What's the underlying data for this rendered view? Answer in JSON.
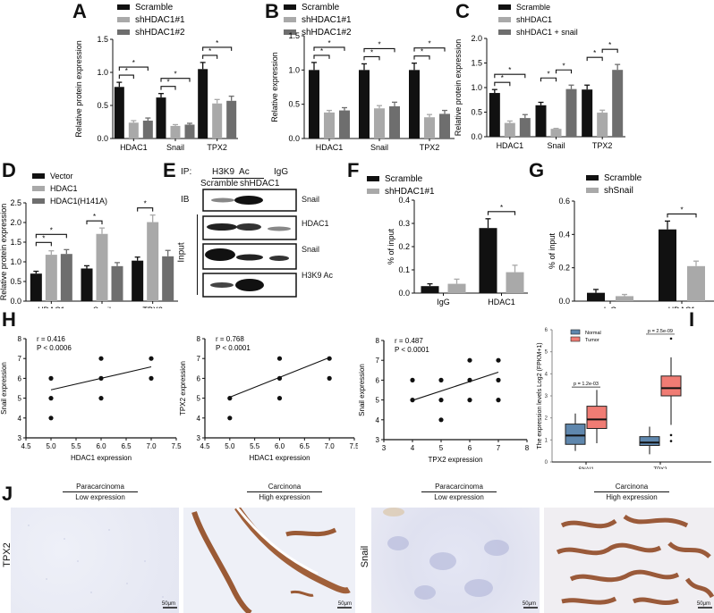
{
  "colors": {
    "black": "#111111",
    "light_gray": "#a9a9a9",
    "dark_gray": "#6e6e6e",
    "normal": "#5f87ad",
    "tumor": "#f07c74"
  },
  "chart_data": [
    {
      "panel": "A",
      "type": "bar",
      "categories": [
        "HDAC1",
        "Snail",
        "TPX2"
      ],
      "series": [
        {
          "name": "Scramble",
          "values": [
            0.78,
            0.62,
            1.05
          ],
          "errors": [
            0.07,
            0.06,
            0.1
          ]
        },
        {
          "name": "shHDAC1#1",
          "values": [
            0.24,
            0.19,
            0.53
          ],
          "errors": [
            0.03,
            0.02,
            0.06
          ]
        },
        {
          "name": "shHDAC1#2",
          "values": [
            0.27,
            0.21,
            0.57
          ],
          "errors": [
            0.04,
            0.02,
            0.07
          ]
        }
      ],
      "ylabel": "Relative protein expression",
      "ylim": [
        0,
        1.5
      ],
      "yticks": [
        "0.0",
        "0.5",
        "1.0",
        "1.5"
      ],
      "annotations": "* significance brackets Scramble vs shHDAC1#1 and vs shHDAC1#2 in each group"
    },
    {
      "panel": "B",
      "type": "bar",
      "categories": [
        "HDAC1",
        "Snail",
        "TPX2"
      ],
      "series": [
        {
          "name": "Scramble",
          "values": [
            1.0,
            1.0,
            1.0
          ],
          "errors": [
            0.11,
            0.09,
            0.1
          ]
        },
        {
          "name": "shHDAC1#1",
          "values": [
            0.38,
            0.44,
            0.31
          ],
          "errors": [
            0.03,
            0.04,
            0.04
          ]
        },
        {
          "name": "shHDAC1#2",
          "values": [
            0.41,
            0.47,
            0.36
          ],
          "errors": [
            0.04,
            0.06,
            0.05
          ]
        }
      ],
      "ylabel": "Relative expression",
      "ylim": [
        0,
        1.5
      ],
      "yticks": [
        "0.0",
        "0.5",
        "1.0",
        "1.5"
      ]
    },
    {
      "panel": "C",
      "type": "bar",
      "categories": [
        "HDAC1",
        "Snail",
        "TPX2"
      ],
      "series": [
        {
          "name": "Scramble",
          "values": [
            0.89,
            0.64,
            0.96
          ],
          "errors": [
            0.07,
            0.06,
            0.09
          ]
        },
        {
          "name": "shHDAC1",
          "values": [
            0.28,
            0.16,
            0.49
          ],
          "errors": [
            0.04,
            0.01,
            0.05
          ]
        },
        {
          "name": "shHDAC1 + snail",
          "values": [
            0.38,
            0.97,
            1.36
          ],
          "errors": [
            0.07,
            0.08,
            0.11
          ]
        }
      ],
      "ylabel": "Relative protein expression",
      "ylim": [
        0,
        2.0
      ],
      "yticks": [
        "0.0",
        "0.5",
        "1.0",
        "1.5",
        "2.0"
      ]
    },
    {
      "panel": "D",
      "type": "bar",
      "categories": [
        "HDAC1",
        "Snail",
        "TPX2"
      ],
      "series": [
        {
          "name": "Vector",
          "values": [
            0.7,
            0.83,
            1.03
          ],
          "errors": [
            0.06,
            0.07,
            0.09
          ]
        },
        {
          "name": "HDAC1",
          "values": [
            1.18,
            1.71,
            2.01
          ],
          "errors": [
            0.1,
            0.15,
            0.18
          ]
        },
        {
          "name": "HDAC1(H141A)",
          "values": [
            1.2,
            0.89,
            1.14
          ],
          "errors": [
            0.11,
            0.09,
            0.15
          ]
        }
      ],
      "ylabel": "Relative protein expression",
      "ylim": [
        0,
        2.5
      ],
      "yticks": [
        "0.0",
        "0.5",
        "1.0",
        "1.5",
        "2.0",
        "2.5"
      ]
    },
    {
      "panel": "F",
      "type": "bar",
      "categories": [
        "IgG",
        "HDAC1"
      ],
      "series": [
        {
          "name": "Scramble",
          "values": [
            0.03,
            0.28
          ],
          "errors": [
            0.01,
            0.04
          ]
        },
        {
          "name": "shHDAC1#1",
          "values": [
            0.04,
            0.09
          ],
          "errors": [
            0.02,
            0.03
          ]
        }
      ],
      "ylabel": "% of input",
      "ylim": [
        0,
        0.4
      ],
      "yticks": [
        "0.0",
        "0.1",
        "0.2",
        "0.3",
        "0.4"
      ]
    },
    {
      "panel": "G",
      "type": "bar",
      "categories": [
        "IgG",
        "HDAC1"
      ],
      "series": [
        {
          "name": "Scramble",
          "values": [
            0.05,
            0.43
          ],
          "errors": [
            0.02,
            0.05
          ]
        },
        {
          "name": "shSnail",
          "values": [
            0.03,
            0.21
          ],
          "errors": [
            0.01,
            0.03
          ]
        }
      ],
      "ylabel": "% of input",
      "ylim": [
        0,
        0.6
      ],
      "yticks": [
        "0.0",
        "0.2",
        "0.4",
        "0.6"
      ]
    },
    {
      "panel": "H1",
      "type": "scatter",
      "x": [
        5,
        5,
        5,
        6,
        6,
        6,
        7,
        7
      ],
      "y": [
        6,
        5,
        4,
        7,
        6,
        5,
        7,
        6
      ],
      "fit": [
        [
          5.0,
          5.42
        ],
        [
          7.0,
          6.58
        ]
      ],
      "r": "r = 0.416",
      "p": "P < 0.0006",
      "xlabel": "HDAC1 expression",
      "ylabel": "Snail expression",
      "xlim": [
        4.5,
        7.5
      ],
      "ylim": [
        3,
        8
      ],
      "xticks": [
        "4.5",
        "5.0",
        "5.5",
        "6.0",
        "6.5",
        "7.0",
        "7.5"
      ],
      "yticks": [
        "3",
        "4",
        "5",
        "6",
        "7",
        "8"
      ]
    },
    {
      "panel": "H2",
      "type": "scatter",
      "x": [
        5,
        5,
        6,
        6,
        6,
        7,
        7
      ],
      "y": [
        5,
        4,
        7,
        6,
        5,
        7,
        6
      ],
      "fit": [
        [
          5.0,
          5.05
        ],
        [
          7.0,
          7.05
        ]
      ],
      "r": "r = 0.768",
      "p": "P < 0.0001",
      "xlabel": "HDAC1 expression",
      "ylabel": "TPX2 expression",
      "xlim": [
        4.5,
        7.5
      ],
      "ylim": [
        3,
        8
      ],
      "xticks": [
        "4.5",
        "5.0",
        "5.5",
        "6.0",
        "6.5",
        "7.0",
        "7.5"
      ],
      "yticks": [
        "3",
        "4",
        "5",
        "6",
        "7",
        "8"
      ]
    },
    {
      "panel": "H3",
      "type": "scatter",
      "x": [
        4,
        4,
        5,
        5,
        5,
        6,
        6,
        6,
        7,
        7,
        7
      ],
      "y": [
        6,
        5,
        6,
        5,
        4,
        7,
        6,
        5,
        7,
        6,
        5
      ],
      "fit": [
        [
          4.0,
          4.98
        ],
        [
          7.0,
          6.4
        ]
      ],
      "r": "r = 0.487",
      "p": "P < 0.0001",
      "xlabel": "TPX2 expression",
      "ylabel": "Snail expression",
      "xlim": [
        3,
        8
      ],
      "ylim": [
        3,
        8
      ],
      "xticks": [
        "3",
        "4",
        "5",
        "6",
        "7",
        "8"
      ],
      "yticks": [
        "3",
        "4",
        "5",
        "6",
        "7",
        "8"
      ]
    },
    {
      "panel": "I",
      "type": "box",
      "categories": [
        "SNAI1",
        "TPX2"
      ],
      "series": [
        {
          "name": "Normal",
          "boxes": [
            {
              "min": 0.5,
              "q1": 0.8,
              "median": 1.2,
              "q3": 1.72,
              "max": 2.2
            },
            {
              "min": 0.35,
              "q1": 0.75,
              "median": 0.88,
              "q3": 1.15,
              "max": 1.6
            }
          ]
        },
        {
          "name": "Tumor",
          "boxes": [
            {
              "min": 0.85,
              "q1": 1.52,
              "median": 1.93,
              "q3": 2.53,
              "max": 3.27
            },
            {
              "min": 1.68,
              "q1": 3.0,
              "median": 3.35,
              "q3": 3.9,
              "max": 4.75,
              "outliers": [
                5.6,
                1.22,
                0.95
              ]
            }
          ]
        }
      ],
      "pvalues": [
        "p = 1.2e-03",
        "p = 2.5e-09"
      ],
      "ylabel": "The expression levels Log2 (FPKM+1)",
      "ylim": [
        0,
        6
      ],
      "yticks": [
        "0",
        "1",
        "2",
        "3",
        "4",
        "5",
        "6"
      ]
    }
  ],
  "panels": {
    "A": {
      "label": "A"
    },
    "B": {
      "label": "B"
    },
    "C": {
      "label": "C"
    },
    "D": {
      "label": "D"
    },
    "E": {
      "label": "E",
      "ip": "IP:",
      "ip_h3k9": "H3K9  Ac",
      "ip_igg": "IgG",
      "lane1": "Scramble",
      "lane2": "shHDAC1",
      "ib": "IB",
      "input": "Input",
      "blots": [
        "Snail",
        "HDAC1",
        "Snail",
        "H3K9 Ac"
      ]
    },
    "F": {
      "label": "F"
    },
    "G": {
      "label": "G"
    },
    "H": {
      "label": "H"
    },
    "I": {
      "label": "I"
    },
    "J": {
      "label": "J",
      "col1_top": "Paracarcinoma",
      "col1_bottom": "Low expression",
      "col2_top": "Carcinona",
      "col2_bottom": "High expression",
      "row1": "TPX2",
      "row2": "Snail",
      "scale": "50μm"
    }
  }
}
